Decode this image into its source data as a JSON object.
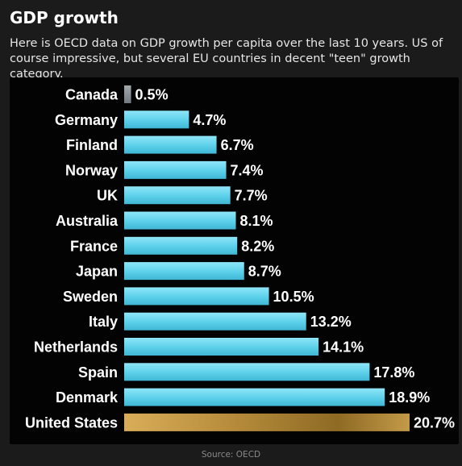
{
  "header": {
    "title": "GDP growth",
    "subtitle": "Here is OECD data on GDP growth per capita over the last 10 years. US of course impressive, but several EU countries in decent \"teen\" growth category."
  },
  "footer": {
    "source": "Source: OECD"
  },
  "colors": {
    "background": "#1b1b1b",
    "panel": "#030303",
    "bar_default": "#5fd0ea",
    "bar_canada": "#8a9196",
    "bar_highlight": "#c9a34a",
    "text": "#ffffff"
  },
  "chart_data": {
    "type": "bar",
    "orientation": "horizontal",
    "categories": [
      "Canada",
      "Germany",
      "Finland",
      "Norway",
      "UK",
      "Australia",
      "France",
      "Japan",
      "Sweden",
      "Italy",
      "Netherlands",
      "Spain",
      "Denmark",
      "United States"
    ],
    "values": [
      0.5,
      4.7,
      6.7,
      7.4,
      7.7,
      8.1,
      8.2,
      8.7,
      10.5,
      13.2,
      14.1,
      17.8,
      18.9,
      20.7
    ],
    "value_labels": [
      "0.5%",
      "4.7%",
      "6.7%",
      "7.4%",
      "7.7%",
      "8.1%",
      "8.2%",
      "8.7%",
      "10.5%",
      "13.2%",
      "14.1%",
      "17.8%",
      "18.9%",
      "20.7%"
    ],
    "title": "GDP growth",
    "xlabel": "",
    "ylabel": "",
    "grid": false,
    "legend": "none"
  }
}
